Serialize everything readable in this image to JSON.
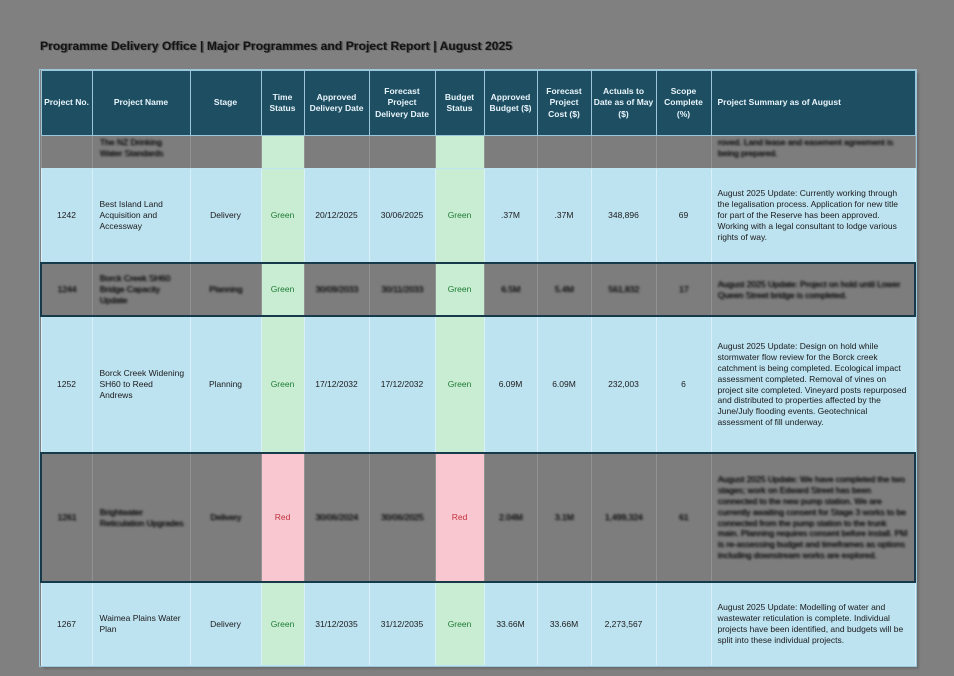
{
  "title": "Programme Delivery Office | Major Programmes and Project Report | August 2025",
  "colors": {
    "page_bg": "#808080",
    "header_bg": "#1D4E62",
    "row_bg": "#BDE2F0",
    "obscured_row_bg": "#7D7D7D",
    "status_green_bg": "#C9EDD2",
    "status_green_text": "#1E7A34",
    "status_red_bg": "#F8C7CF",
    "status_red_text": "#C23241"
  },
  "table": {
    "columns": [
      {
        "id": "project_no",
        "label": "Project No."
      },
      {
        "id": "project_name",
        "label": "Project Name"
      },
      {
        "id": "stage",
        "label": "Stage"
      },
      {
        "id": "time_status",
        "label": "Time Status"
      },
      {
        "id": "approved_delivery_date",
        "label": "Approved Delivery Date"
      },
      {
        "id": "forecast_delivery_date",
        "label": "Forecast Project Delivery Date"
      },
      {
        "id": "budget_status",
        "label": "Budget Status"
      },
      {
        "id": "approved_budget",
        "label": "Approved Budget ($)"
      },
      {
        "id": "forecast_cost",
        "label": "Forecast Project Cost ($)"
      },
      {
        "id": "actuals_to_date",
        "label": "Actuals to Date as of May ($)"
      },
      {
        "id": "scope_complete",
        "label": "Scope Complete (%)"
      },
      {
        "id": "summary",
        "label": "Project Summary as of August"
      }
    ],
    "rows": [
      {
        "partial": true,
        "obscured": true,
        "obscured_text": true,
        "project_no": "",
        "project_name": "The NZ Drinking Water Standards",
        "stage": "",
        "time_status": "",
        "time_status_color": "green",
        "approved_delivery_date": "",
        "forecast_delivery_date": "",
        "budget_status": "",
        "budget_status_color": "green",
        "approved_budget": "",
        "forecast_cost": "",
        "actuals_to_date": "",
        "scope_complete": "",
        "summary": "roved. Land lease and easement agreement is being prepared."
      },
      {
        "partial": false,
        "obscured": false,
        "obscured_text": false,
        "project_no": "1242",
        "project_name": "Best Island Land Acquisition and Accessway",
        "stage": "Delivery",
        "time_status": "Green",
        "time_status_color": "green",
        "approved_delivery_date": "20/12/2025",
        "forecast_delivery_date": "30/06/2025",
        "budget_status": "Green",
        "budget_status_color": "green",
        "approved_budget": ".37M",
        "forecast_cost": ".37M",
        "actuals_to_date": "348,896",
        "scope_complete": "69",
        "summary": "August 2025 Update: Currently working through the legalisation process. Application for new title for part of the Reserve has been approved. Working with a legal consultant to lodge various rights of way."
      },
      {
        "partial": false,
        "obscured": true,
        "obscured_text": true,
        "project_no": "1244",
        "project_name": "Borck Creek SH60 Bridge Capacity Update",
        "stage": "Planning",
        "time_status": "Green",
        "time_status_color": "green",
        "approved_delivery_date": "30/09/2033",
        "forecast_delivery_date": "30/11/2033",
        "budget_status": "Green",
        "budget_status_color": "green",
        "approved_budget": "6.5M",
        "forecast_cost": "5.4M",
        "actuals_to_date": "561,832",
        "scope_complete": "17",
        "summary": "August 2025 Update: Project on hold until Lower Queen Street bridge is completed."
      },
      {
        "partial": false,
        "obscured": false,
        "obscured_text": false,
        "project_no": "1252",
        "project_name": "Borck Creek Widening SH60 to Reed Andrews",
        "stage": "Planning",
        "time_status": "Green",
        "time_status_color": "green",
        "approved_delivery_date": "17/12/2032",
        "forecast_delivery_date": "17/12/2032",
        "budget_status": "Green",
        "budget_status_color": "green",
        "approved_budget": "6.09M",
        "forecast_cost": "6.09M",
        "actuals_to_date": "232,003",
        "scope_complete": "6",
        "summary": "August 2025 Update: Design on hold while stormwater flow review for the Borck creek catchment is being completed. Ecological impact assessment completed. Removal of vines on project site completed. Vineyard posts repurposed and distributed to properties affected by the June/July flooding events. Geotechnical assessment of fill underway."
      },
      {
        "partial": false,
        "obscured": true,
        "obscured_text": true,
        "project_no": "1261",
        "project_name": "Brightwater Reticulation Upgrades",
        "stage": "Delivery",
        "time_status": "Red",
        "time_status_color": "red",
        "approved_delivery_date": "30/06/2024",
        "forecast_delivery_date": "30/06/2025",
        "budget_status": "Red",
        "budget_status_color": "red",
        "approved_budget": "2.04M",
        "forecast_cost": "3.1M",
        "actuals_to_date": "1,499,324",
        "scope_complete": "61",
        "summary": "August 2025 Update: We have completed the two stages; work on Edward Street has been connected to the new pump station. We are currently awaiting consent for Stage 3 works to be connected from the pump station to the trunk main. Planning requires consent before install. PM is re-assessing budget and timeframes as options including downstream works are explored."
      },
      {
        "partial": false,
        "obscured": false,
        "obscured_text": false,
        "project_no": "1267",
        "project_name": "Waimea Plains Water Plan",
        "stage": "Delivery",
        "time_status": "Green",
        "time_status_color": "green",
        "approved_delivery_date": "31/12/2035",
        "forecast_delivery_date": "31/12/2035",
        "budget_status": "Green",
        "budget_status_color": "green",
        "approved_budget": "33.66M",
        "forecast_cost": "33.66M",
        "actuals_to_date": "2,273,567",
        "scope_complete": "",
        "summary": "August 2025 Update: Modelling of water and wastewater reticulation is complete. Individual projects have been identified, and budgets will be split into these individual projects."
      }
    ]
  }
}
